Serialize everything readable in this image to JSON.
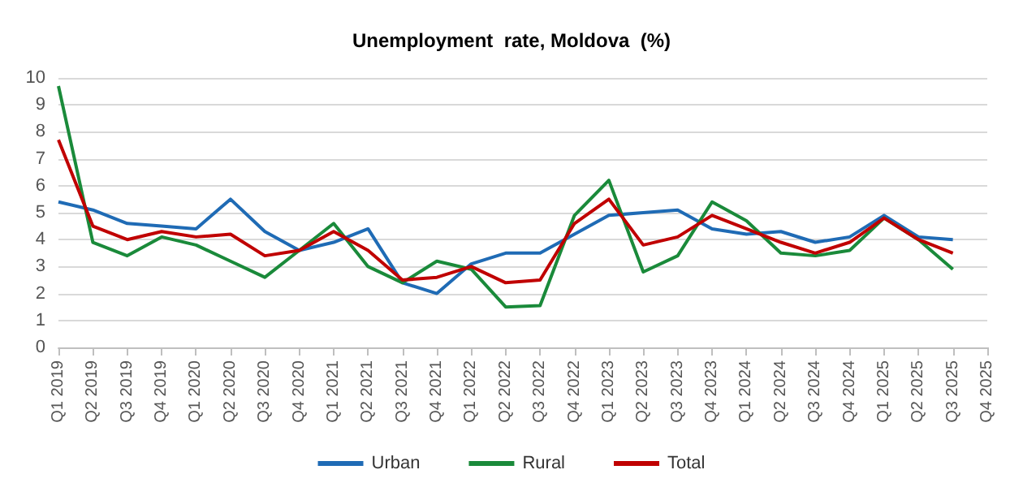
{
  "chart_data": {
    "type": "line",
    "title": "Unemployment  rate, Moldova  (%)",
    "categories": [
      "Q1 2019",
      "Q2 2019",
      "Q3 2019",
      "Q4 2019",
      "Q1 2020",
      "Q2 2020",
      "Q3 2020",
      "Q4 2020",
      "Q1 2021",
      "Q2 2021",
      "Q3 2021",
      "Q4 2021",
      "Q1 2022",
      "Q2 2022",
      "Q3 2022",
      "Q4 2022",
      "Q1 2023",
      "Q2 2023",
      "Q3 2023",
      "Q4 2023",
      "Q1 2024",
      "Q2 2024",
      "Q3 2024",
      "Q4 2024",
      "Q1 2025",
      "Q2 2025",
      "Q3 2025",
      "Q4 2025"
    ],
    "series": [
      {
        "name": "Urban",
        "color": "#1f6bb5",
        "values": [
          5.4,
          5.1,
          4.6,
          4.5,
          4.4,
          5.5,
          4.3,
          3.6,
          3.9,
          4.4,
          2.4,
          2.0,
          3.1,
          3.5,
          3.5,
          4.2,
          4.9,
          5.0,
          5.1,
          4.4,
          4.2,
          4.3,
          3.9,
          4.1,
          4.9,
          4.1,
          4.0,
          null
        ]
      },
      {
        "name": "Rural",
        "color": "#1a8a3a",
        "values": [
          9.7,
          3.9,
          3.4,
          4.1,
          3.8,
          3.2,
          2.6,
          3.6,
          4.6,
          3.0,
          2.4,
          3.2,
          2.9,
          1.5,
          1.55,
          4.9,
          6.2,
          2.8,
          3.4,
          5.4,
          4.7,
          3.5,
          3.4,
          3.6,
          4.8,
          4.0,
          2.9,
          null
        ]
      },
      {
        "name": "Total",
        "color": "#c00000",
        "values": [
          7.7,
          4.5,
          4.0,
          4.3,
          4.1,
          4.2,
          3.4,
          3.6,
          4.3,
          3.6,
          2.5,
          2.6,
          3.0,
          2.4,
          2.5,
          4.6,
          5.5,
          3.8,
          4.1,
          4.9,
          4.4,
          3.9,
          3.5,
          3.9,
          4.8,
          4.0,
          3.5,
          null
        ]
      }
    ],
    "ylim": [
      0,
      10
    ],
    "yticks": [
      0,
      1,
      2,
      3,
      4,
      5,
      6,
      7,
      8,
      9,
      10
    ],
    "grid": "y",
    "legend": "bottom",
    "marker": "none",
    "line_style": "solid"
  }
}
